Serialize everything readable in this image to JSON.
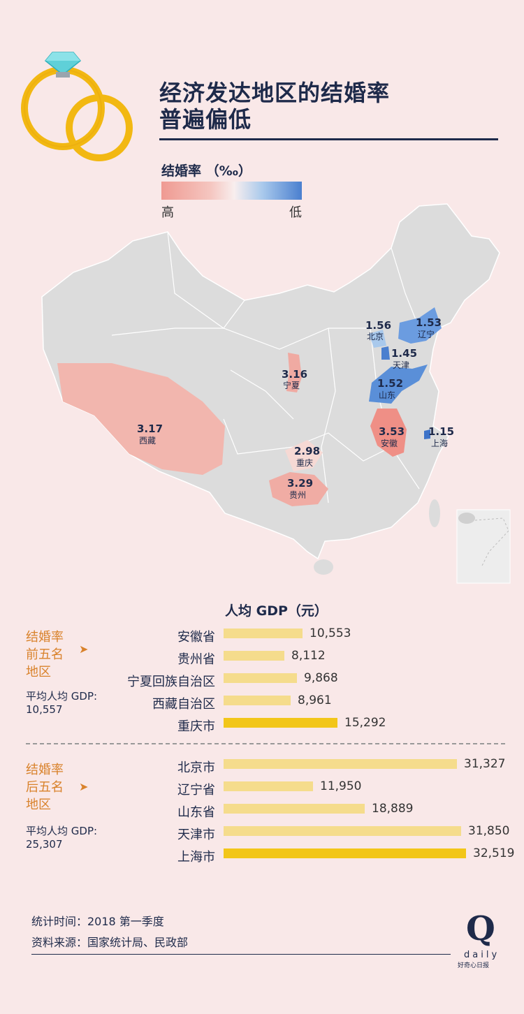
{
  "title": {
    "line1": "经济发达地区的结婚率",
    "line2": "普遍偏低"
  },
  "legend": {
    "title": "结婚率 （‰）",
    "high": "高",
    "low": "低",
    "colors": {
      "high": "#ef9a92",
      "low": "#4a7fcf"
    }
  },
  "map": {
    "regions": [
      {
        "value": "1.56",
        "name": "北京",
        "color": "#a9c9ec"
      },
      {
        "value": "1.53",
        "name": "辽宁",
        "color": "#6b9ce0"
      },
      {
        "value": "1.45",
        "name": "天津",
        "color": "#4a7fcf"
      },
      {
        "value": "3.16",
        "name": "宁夏",
        "color": "#f0aaa2"
      },
      {
        "value": "1.52",
        "name": "山东",
        "color": "#5a8fd8"
      },
      {
        "value": "3.17",
        "name": "西藏",
        "color": "#f2b6ae"
      },
      {
        "value": "3.53",
        "name": "安徽",
        "color": "#ef8f86"
      },
      {
        "value": "1.15",
        "name": "上海",
        "color": "#3d73c8"
      },
      {
        "value": "2.98",
        "name": "重庆",
        "color": "#f6d9d4"
      },
      {
        "value": "3.29",
        "name": "贵州",
        "color": "#f0aca4"
      }
    ]
  },
  "chart_data": {
    "type": "bar",
    "title": "人均 GDP（元）",
    "groups": [
      {
        "label_lines": [
          "结婚率",
          "前五名",
          "地区"
        ],
        "avg_label_lines": [
          "平均人均 GDP:",
          "10,557"
        ],
        "categories": [
          "安徽省",
          "贵州省",
          "宁夏回族自治区",
          "西藏自治区",
          "重庆市"
        ],
        "values": [
          10553,
          8112,
          9868,
          8961,
          15292
        ],
        "value_labels": [
          "10,553",
          "8,112",
          "9,868",
          "8,961",
          "15,292"
        ]
      },
      {
        "label_lines": [
          "结婚率",
          "后五名",
          "地区"
        ],
        "avg_label_lines": [
          "平均人均 GDP:",
          "25,307"
        ],
        "categories": [
          "北京市",
          "辽宁省",
          "山东省",
          "天津市",
          "上海市"
        ],
        "values": [
          31327,
          11950,
          18889,
          31850,
          32519
        ],
        "value_labels": [
          "31,327",
          "11,950",
          "18,889",
          "31,850",
          "32,519"
        ]
      }
    ],
    "colors": {
      "normal": "#f5dc8c",
      "highlight": "#f2c619"
    }
  },
  "footer": {
    "time": "统计时间：2018 第一季度",
    "source": "资料来源：国家统计局、民政部"
  },
  "logo": {
    "letter": "Q",
    "word": "daily",
    "sub": "好奇心日报"
  }
}
